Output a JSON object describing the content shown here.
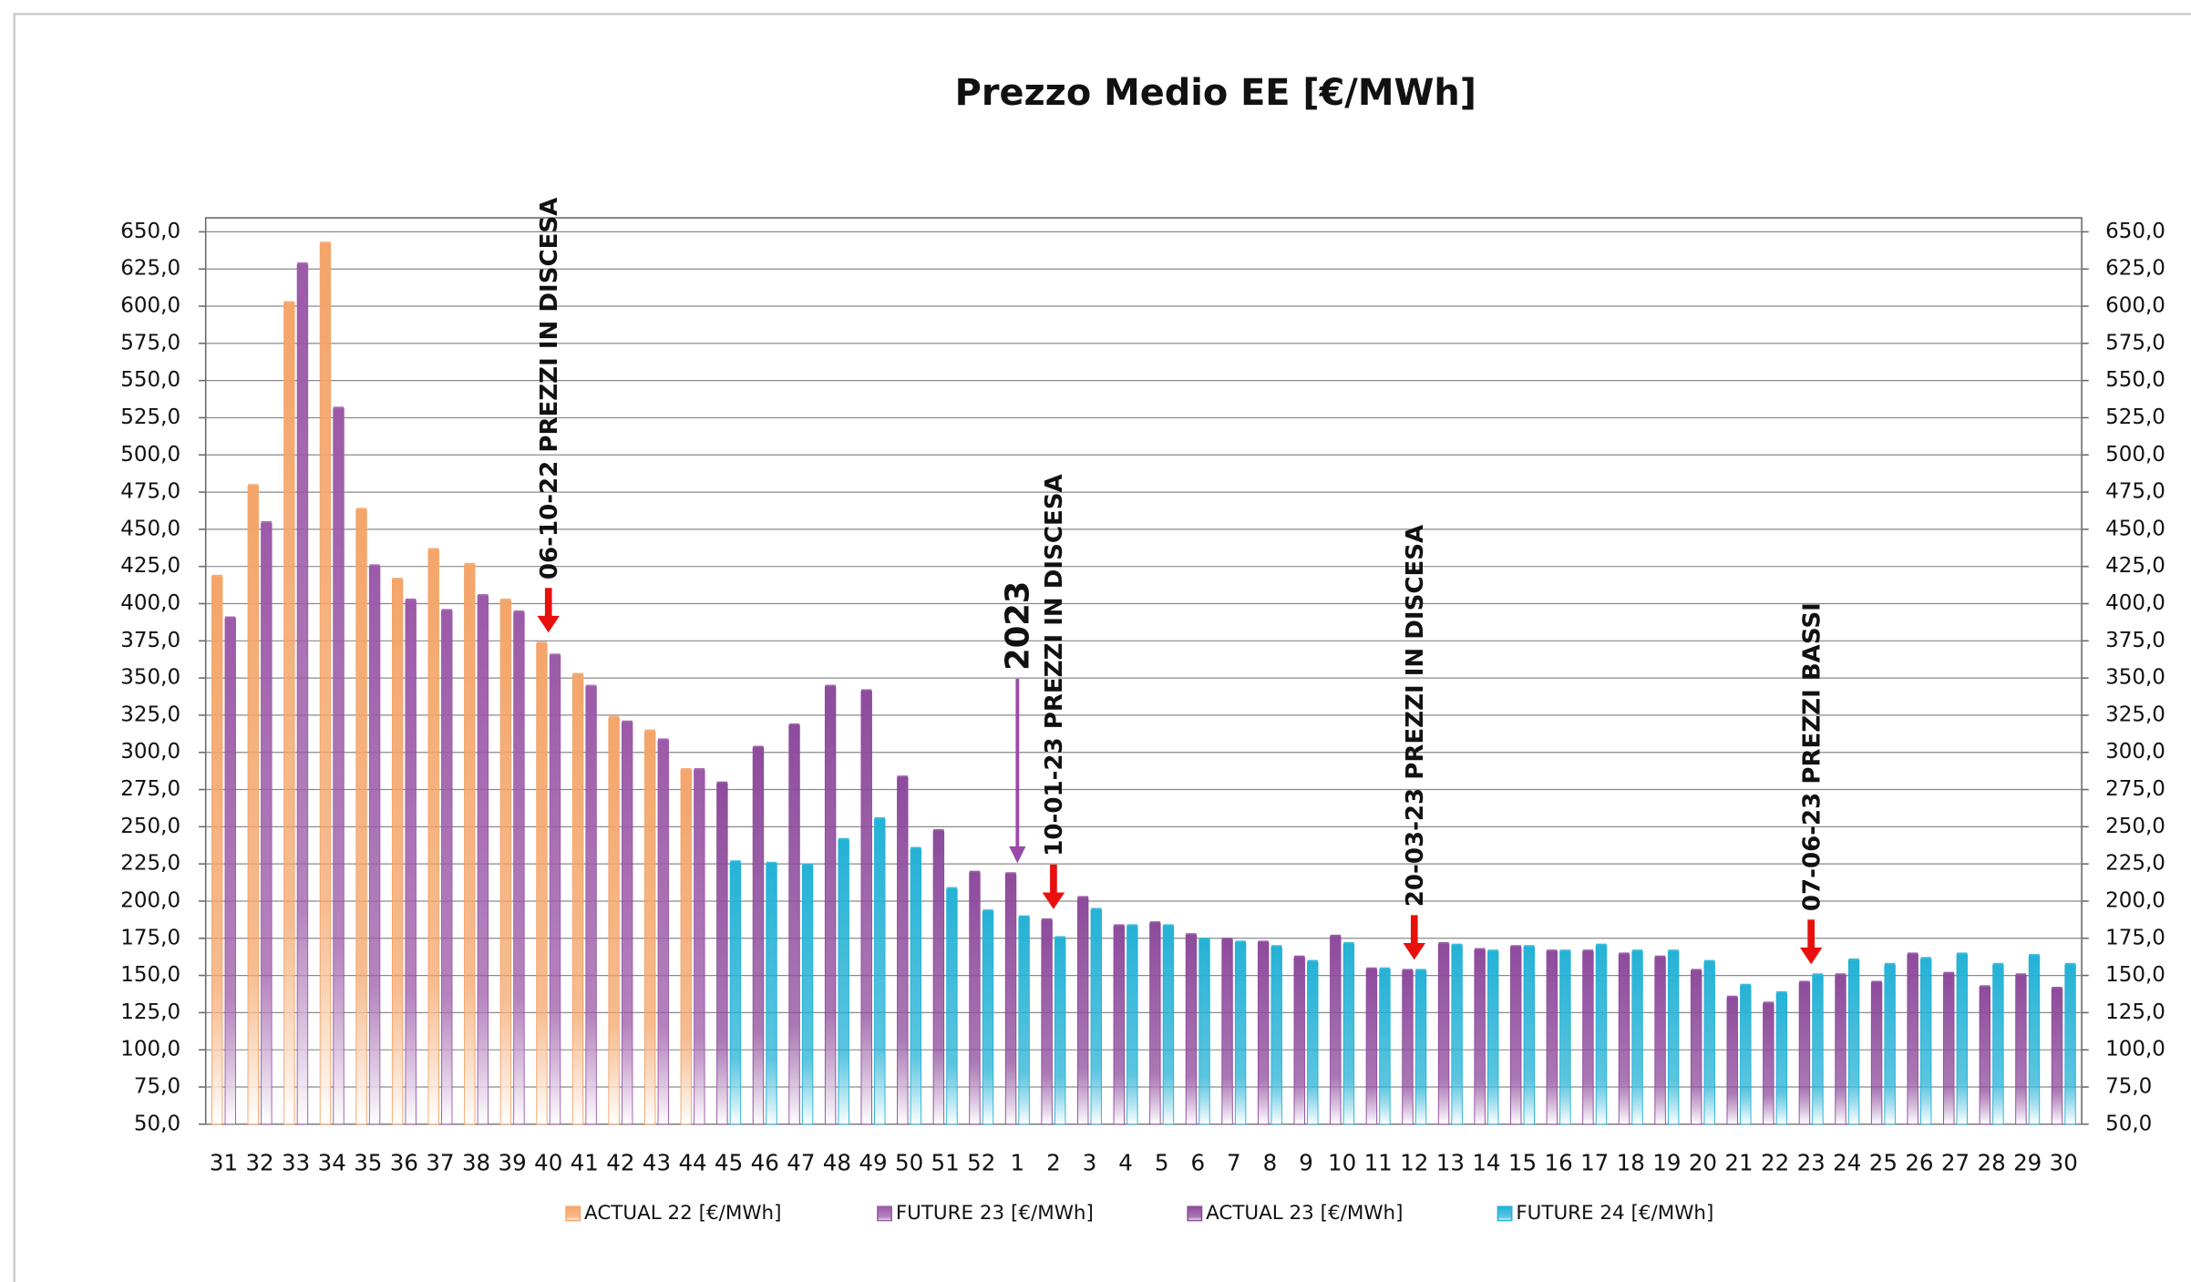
{
  "chart_data": {
    "type": "bar",
    "title": "Prezzo Medio EE [€/MWh]",
    "categories": [
      "31",
      "32",
      "33",
      "34",
      "35",
      "36",
      "37",
      "38",
      "39",
      "40",
      "41",
      "42",
      "43",
      "44",
      "45",
      "46",
      "47",
      "48",
      "49",
      "50",
      "51",
      "52",
      "1",
      "2",
      "3",
      "4",
      "5",
      "6",
      "7",
      "8",
      "9",
      "10",
      "11",
      "12",
      "13",
      "14",
      "15",
      "16",
      "17",
      "18",
      "19",
      "20",
      "21",
      "22",
      "23",
      "24",
      "25",
      "26",
      "27",
      "28",
      "29",
      "30"
    ],
    "series": [
      {
        "name": "ACTUAL 22 [€/MWh]",
        "color": "#f4a56a",
        "values": [
          418,
          479,
          602,
          642,
          463,
          416,
          436,
          426,
          402,
          373,
          352,
          323,
          314,
          288,
          null,
          null,
          null,
          null,
          null,
          null,
          null,
          null,
          null,
          null,
          null,
          null,
          null,
          null,
          null,
          null,
          null,
          null,
          null,
          null,
          null,
          null,
          null,
          null,
          null,
          null,
          null,
          null,
          null,
          null,
          null,
          null,
          null,
          null,
          null,
          null,
          null,
          null
        ]
      },
      {
        "name": "FUTURE 23 [€/MWh]",
        "color": "#9c5aa8",
        "values": [
          390,
          454,
          628,
          531,
          425,
          402,
          395,
          405,
          394,
          365,
          344,
          320,
          308,
          288,
          null,
          null,
          null,
          null,
          null,
          null,
          null,
          null,
          null,
          null,
          null,
          null,
          null,
          null,
          null,
          null,
          null,
          null,
          null,
          null,
          null,
          null,
          null,
          null,
          null,
          null,
          null,
          null,
          null,
          null,
          null,
          null,
          null,
          null,
          null,
          null,
          null,
          null
        ]
      },
      {
        "name": "ACTUAL 23 [€/MWh]",
        "color": "#8e4b9c",
        "values": [
          null,
          null,
          null,
          null,
          null,
          null,
          null,
          null,
          null,
          null,
          null,
          null,
          null,
          null,
          279,
          303,
          318,
          344,
          341,
          283,
          247,
          219,
          218,
          187,
          202,
          183,
          185,
          177,
          174,
          172,
          162,
          176,
          154,
          153,
          171,
          167,
          169,
          166,
          166,
          164,
          162,
          153,
          135,
          131,
          145,
          150,
          145,
          164,
          151,
          142,
          150,
          141
        ]
      },
      {
        "name": "FUTURE 24 [€/MWh]",
        "color": "#25b2d6",
        "values": [
          null,
          null,
          null,
          null,
          null,
          null,
          null,
          null,
          null,
          null,
          null,
          null,
          null,
          null,
          226,
          225,
          224,
          241,
          255,
          235,
          208,
          193,
          189,
          175,
          194,
          183,
          183,
          174,
          172,
          169,
          159,
          171,
          154,
          153,
          170,
          166,
          169,
          166,
          170,
          166,
          166,
          159,
          143,
          138,
          150,
          160,
          157,
          161,
          164,
          157,
          163,
          157
        ]
      }
    ],
    "ylim": [
      50,
      650
    ],
    "yticks": [
      {
        "value": 50,
        "label": "50,0"
      },
      {
        "value": 75,
        "label": "75,0"
      },
      {
        "value": 100,
        "label": "100,0"
      },
      {
        "value": 125,
        "label": "125,0"
      },
      {
        "value": 150,
        "label": "150,0"
      },
      {
        "value": 175,
        "label": "175,0"
      },
      {
        "value": 200,
        "label": "200,0"
      },
      {
        "value": 225,
        "label": "225,0"
      },
      {
        "value": 250,
        "label": "250,0"
      },
      {
        "value": 275,
        "label": "275,0"
      },
      {
        "value": 300,
        "label": "300,0"
      },
      {
        "value": 325,
        "label": "325,0"
      },
      {
        "value": 350,
        "label": "350,0"
      },
      {
        "value": 375,
        "label": "375,0"
      },
      {
        "value": 400,
        "label": "400,0"
      },
      {
        "value": 425,
        "label": "425,0"
      },
      {
        "value": 450,
        "label": "450,0"
      },
      {
        "value": 475,
        "label": "475,0"
      },
      {
        "value": 500,
        "label": "500,0"
      },
      {
        "value": 525,
        "label": "525,0"
      },
      {
        "value": 550,
        "label": "550,0"
      },
      {
        "value": 575,
        "label": "575,0"
      },
      {
        "value": 600,
        "label": "600,0"
      },
      {
        "value": 625,
        "label": "625,0"
      },
      {
        "value": 650,
        "label": "650,0"
      }
    ],
    "y2lim": [
      50,
      650
    ],
    "y2ticks": [
      {
        "value": 50,
        "label": "50,0"
      },
      {
        "value": 75,
        "label": "75,0"
      },
      {
        "value": 100,
        "label": "100,0"
      },
      {
        "value": 125,
        "label": "125,0"
      },
      {
        "value": 150,
        "label": "150,0"
      },
      {
        "value": 175,
        "label": "175,0"
      },
      {
        "value": 200,
        "label": "200,0"
      },
      {
        "value": 225,
        "label": "225,0"
      },
      {
        "value": 250,
        "label": "250,0"
      },
      {
        "value": 275,
        "label": "275,0"
      },
      {
        "value": 300,
        "label": "300,0"
      },
      {
        "value": 325,
        "label": "325,0"
      },
      {
        "value": 350,
        "label": "350,0"
      },
      {
        "value": 375,
        "label": "375,0"
      },
      {
        "value": 400,
        "label": "400,0"
      },
      {
        "value": 425,
        "label": "425,0"
      },
      {
        "value": 450,
        "label": "450,0"
      },
      {
        "value": 475,
        "label": "475,0"
      },
      {
        "value": 500,
        "label": "500,0"
      },
      {
        "value": 525,
        "label": "525,0"
      },
      {
        "value": 550,
        "label": "550,0"
      },
      {
        "value": 575,
        "label": "575,0"
      },
      {
        "value": 600,
        "label": "600,0"
      },
      {
        "value": 625,
        "label": "625,0"
      },
      {
        "value": 650,
        "label": "650,0"
      }
    ],
    "grid": true,
    "legend": "bottom",
    "annotations": [
      {
        "text": "06-10-22 PREZZI IN DISCESA",
        "category": "40",
        "color": "#e8100c"
      },
      {
        "text": "2023",
        "category": "1",
        "color": "#9a4aa8",
        "emphasis": true
      },
      {
        "text": "10-01-23 PREZZI IN DISCESA",
        "category": "2",
        "color": "#e8100c"
      },
      {
        "text": "20-03-23 PREZZI IN DISCESA",
        "category": "12",
        "color": "#e8100c"
      },
      {
        "text": "07-06-23 PREZZI BASSI",
        "category": "23",
        "color": "#e8100c"
      }
    ]
  }
}
